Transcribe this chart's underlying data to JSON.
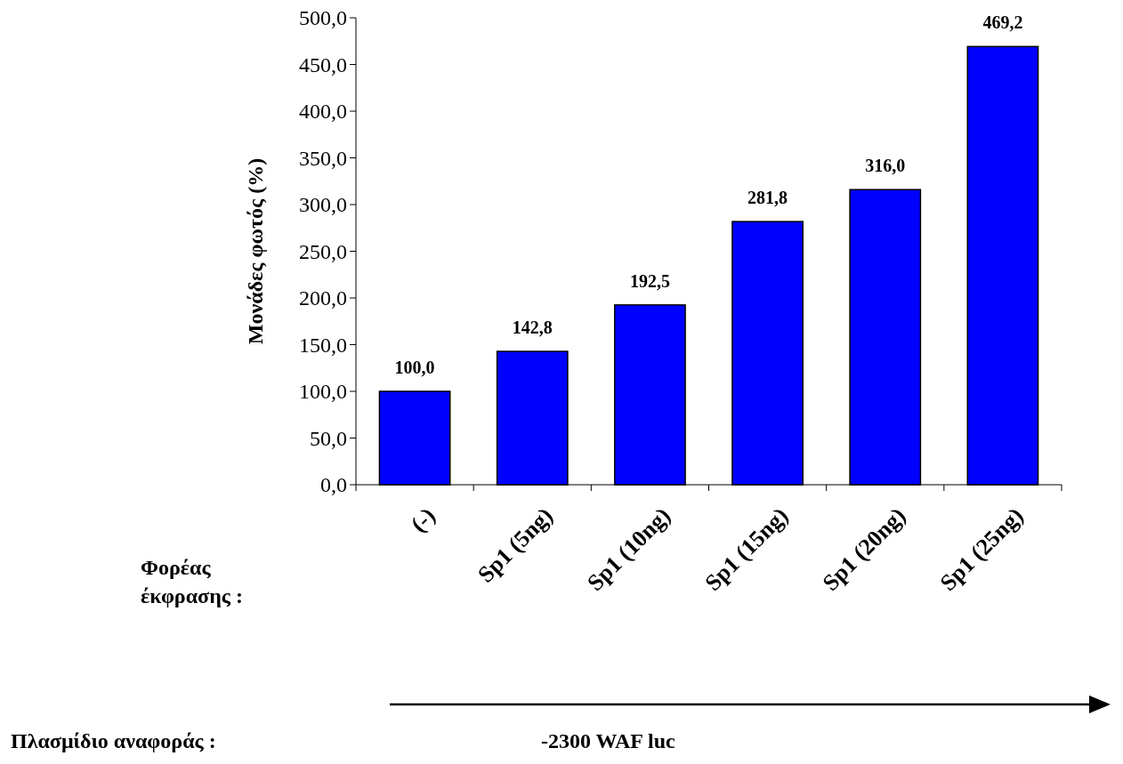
{
  "chart_data": {
    "type": "bar",
    "ylabel": "Μονάδες φωτός (%)",
    "categories": [
      "(-)",
      "Sp1 (5ng)",
      "Sp1 (10ng)",
      "Sp1 (15ng)",
      "Sp1 (20ng)",
      "Sp1 (25ng)"
    ],
    "values": [
      100.0,
      142.8,
      192.5,
      281.8,
      316.0,
      469.2
    ],
    "value_labels": [
      "100,0",
      "142,8",
      "192,5",
      "281,8",
      "316,0",
      "469,2"
    ],
    "color": "#0000ff",
    "ylim": [
      0,
      500
    ],
    "yticks": [
      {
        "value": 0,
        "label": "0,0"
      },
      {
        "value": 50,
        "label": "50,0"
      },
      {
        "value": 100,
        "label": "100,0"
      },
      {
        "value": 150,
        "label": "150,0"
      },
      {
        "value": 200,
        "label": "200,0"
      },
      {
        "value": 250,
        "label": "250,0"
      },
      {
        "value": 300,
        "label": "300,0"
      },
      {
        "value": 350,
        "label": "350,0"
      },
      {
        "value": 400,
        "label": "400,0"
      },
      {
        "value": 450,
        "label": "450,0"
      },
      {
        "value": 500,
        "label": "500,0"
      }
    ],
    "grid": false,
    "annotations": [
      "Φορέας έκφρασης :",
      "Πλασμίδιο αναφοράς :",
      "-2300 WAF luc"
    ]
  }
}
